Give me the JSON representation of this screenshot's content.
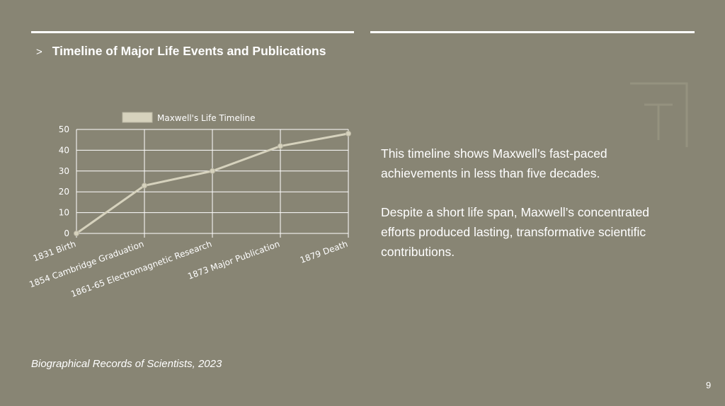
{
  "slide": {
    "title_marker": ">",
    "title": "Timeline of Major Life Events and Publications",
    "paragraphs": [
      "This timeline shows Maxwell’s fast-paced achievements in less than five decades.",
      "Despite a short life span, Maxwell’s concentrated efforts produced lasting, transformative scientific contributions."
    ],
    "source": "Biographical Records of Scientists, 2023",
    "page_number": "9"
  },
  "colors": {
    "background": "#888574",
    "text": "#ffffff",
    "line": "#d6d2bd",
    "grid": "#ffffff"
  },
  "chart_data": {
    "type": "line",
    "categories": [
      "1831 Birth",
      "1854 Cambridge Graduation",
      "1861-65 Electromagnetic Research",
      "1873 Major Publication",
      "1879 Death"
    ],
    "series": [
      {
        "name": "Maxwell's Life Timeline",
        "values": [
          0,
          23,
          30,
          42,
          48
        ]
      }
    ],
    "yticks": [
      0,
      10,
      20,
      30,
      40,
      50
    ],
    "ylim": [
      0,
      50
    ],
    "grid": true,
    "legend_position": "top-center"
  }
}
